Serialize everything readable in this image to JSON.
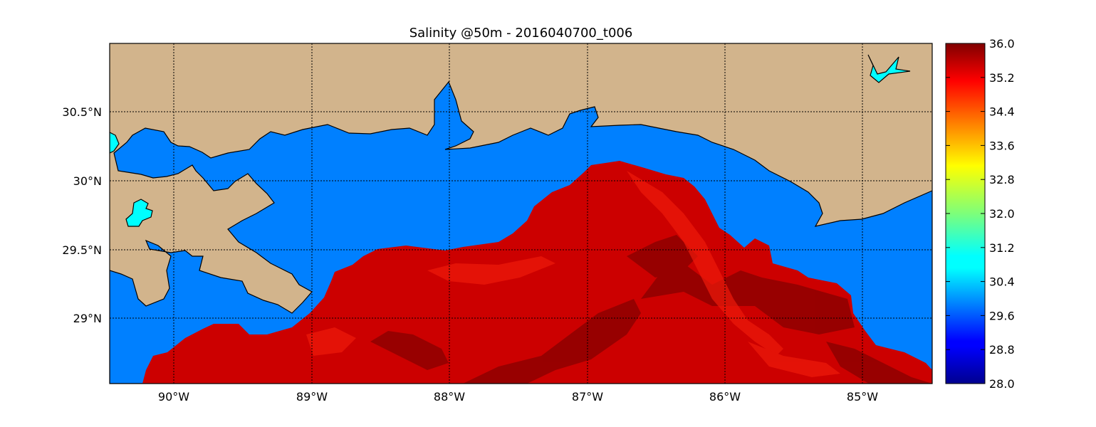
{
  "title": "Salinity @50m - 2016040700_t006",
  "map": {
    "lon_range": [
      -90.5,
      -84.5
    ],
    "lat_range": [
      28.55,
      31.0
    ],
    "longitude_labels": [
      {
        "value": -90,
        "label": "90°W"
      },
      {
        "value": -89,
        "label": "89°W"
      },
      {
        "value": -88,
        "label": "88°W"
      },
      {
        "value": -87,
        "label": "87°W"
      },
      {
        "value": -86,
        "label": "86°W"
      },
      {
        "value": -85,
        "label": "85°W"
      }
    ],
    "latitude_labels": [
      {
        "value": 30.5,
        "label": "30.5°N"
      },
      {
        "value": 30.0,
        "label": "30°N"
      },
      {
        "value": 29.5,
        "label": "29.5°N"
      },
      {
        "value": 29.0,
        "label": "29°N"
      }
    ],
    "gridlines": "dotted",
    "colors": {
      "land": "#d2b48c",
      "water_low_salinity": "#0080ff",
      "lake": "#00ffff",
      "high_salinity": "#cc0000",
      "coastline": "#000000"
    }
  },
  "colorbar": {
    "colormap": "jet",
    "min": 28.0,
    "max": 36.0,
    "tick_labels": [
      "28.0",
      "28.8",
      "29.6",
      "30.4",
      "31.2",
      "32.0",
      "32.8",
      "33.6",
      "34.4",
      "35.2",
      "36.0"
    ]
  }
}
